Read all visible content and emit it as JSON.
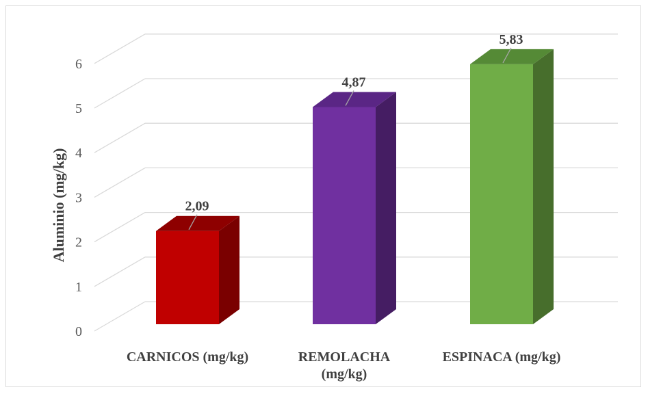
{
  "chart_data": {
    "type": "bar",
    "style": "3d-column",
    "categories": [
      [
        "CARNICOS (mg/kg)"
      ],
      [
        "REMOLACHA",
        "(mg/kg)"
      ],
      [
        "ESPINACA (mg/kg)"
      ]
    ],
    "values": [
      2.09,
      4.87,
      5.83
    ],
    "value_labels": [
      "2,09",
      "4,87",
      "5,83"
    ],
    "ylabel": "Aluminio (mg/kg)",
    "xlabel": "",
    "title": "",
    "ylim": [
      0,
      6
    ],
    "yticks": [
      0,
      1,
      2,
      3,
      4,
      5,
      6
    ],
    "grid": true,
    "legend": "none",
    "colors": {
      "front": [
        "#c00000",
        "#7030a0",
        "#70ad47"
      ],
      "side": [
        "#7a0000",
        "#451d63",
        "#476e2c"
      ],
      "top": [
        "#8e0000",
        "#5a2685",
        "#558a36"
      ],
      "grid": "#d9d9d9",
      "text": "#404040"
    }
  }
}
